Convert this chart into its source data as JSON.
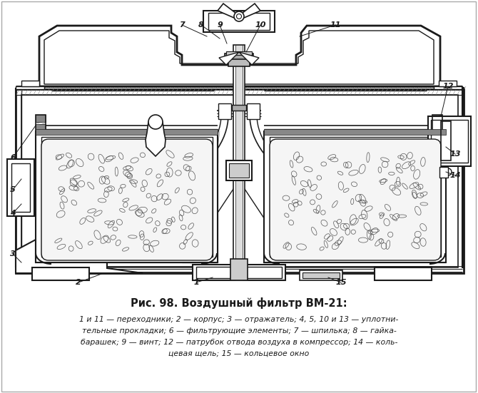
{
  "title": "Рис. 98. Воздушный фильтр ВМ-21:",
  "caption_line1": "1 и 11 — переходники; 2 — корпус; 3 — отражатель; 4, 5, 10 и 13 — уплотни-",
  "caption_line2": "тельные прокладки; 6 — фильтрующие элементы; 7 — шпилька; 8 — гайка-",
  "caption_line3": "барашек; 9 — винт; 12 — патрубок отвода воздуха в компрессор; 14 — коль-",
  "caption_line4": "цевая щель; 15 — кольцевое окно",
  "bg_color": "#ffffff",
  "line_color": "#1a1a1a",
  "fig_width": 6.7,
  "fig_height": 5.51,
  "dpi": 100
}
